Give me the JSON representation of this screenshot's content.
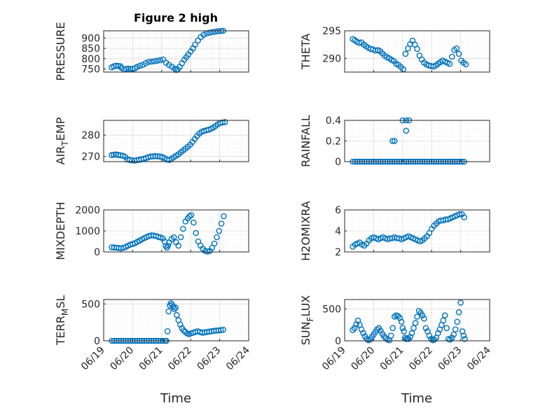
{
  "figure": {
    "title": "Figure 2 high"
  },
  "colors": {
    "marker": "#0072BD",
    "axis": "#262626",
    "grid": "#dcdcdc"
  },
  "x_tick_labels": [
    "06/19",
    "06/20",
    "06/21",
    "06/22",
    "06/23",
    "06/24"
  ],
  "x_label": "Time",
  "chart_data": [
    {
      "type": "scatter",
      "ylabel": "PRESSURE",
      "ylabel_parts": [
        "PRESSURE"
      ],
      "title": "Figure 2 high",
      "xlim": [
        0,
        5
      ],
      "ylim": [
        735,
        935
      ],
      "yticks": [
        750,
        800,
        850,
        900
      ],
      "x_tick_labels_visible": false,
      "series": [
        {
          "x": [
            0.28,
            0.35,
            0.42,
            0.5,
            0.58,
            0.62,
            0.7,
            0.78,
            0.85,
            0.92,
            1.0,
            1.08,
            1.15,
            1.25,
            1.35,
            1.45,
            1.55,
            1.65,
            1.75,
            1.85,
            1.95,
            2.05,
            2.15,
            2.25,
            2.35,
            2.45,
            2.5,
            2.55,
            2.62,
            2.7,
            2.78,
            2.85,
            2.92,
            3.0,
            3.08,
            3.15,
            3.25,
            3.35,
            3.45,
            3.55,
            3.65,
            3.75,
            3.85,
            3.95,
            4.05,
            4.12
          ],
          "y": [
            758,
            763,
            766,
            765,
            763,
            755,
            748,
            750,
            752,
            750,
            751,
            753,
            760,
            766,
            770,
            778,
            784,
            786,
            788,
            790,
            793,
            796,
            780,
            770,
            761,
            752,
            745,
            748,
            760,
            778,
            795,
            808,
            820,
            835,
            850,
            868,
            888,
            905,
            916,
            922,
            926,
            929,
            931,
            933,
            934,
            935
          ]
        }
      ]
    },
    {
      "type": "scatter",
      "ylabel": "THETA",
      "ylabel_parts": [
        "THETA"
      ],
      "xlim": [
        0,
        5
      ],
      "ylim": [
        287.5,
        295
      ],
      "yticks": [
        290,
        295
      ],
      "x_tick_labels_visible": false,
      "series": [
        {
          "x": [
            0.28,
            0.35,
            0.42,
            0.5,
            0.58,
            0.66,
            0.74,
            0.82,
            0.9,
            0.98,
            1.06,
            1.14,
            1.22,
            1.3,
            1.38,
            1.46,
            1.54,
            1.62,
            1.7,
            1.78,
            1.86,
            1.94,
            2.02,
            2.1,
            2.18,
            2.26,
            2.34,
            2.42,
            2.5,
            2.58,
            2.66,
            2.74,
            2.82,
            2.9,
            2.98,
            3.06,
            3.14,
            3.22,
            3.3,
            3.38,
            3.46,
            3.54,
            3.62,
            3.7,
            3.78,
            3.86,
            3.94,
            4.02,
            4.1,
            4.18
          ],
          "y": [
            293.5,
            293.3,
            293.0,
            292.8,
            292.9,
            292.5,
            292.2,
            291.9,
            291.7,
            291.6,
            291.4,
            291.5,
            291.3,
            290.9,
            290.5,
            290.2,
            290.0,
            289.7,
            289.5,
            289.0,
            288.8,
            288.4,
            288.0,
            290.8,
            291.8,
            292.6,
            293.2,
            292.5,
            291.7,
            290.5,
            289.8,
            289.2,
            288.9,
            288.7,
            288.6,
            288.5,
            288.7,
            289.0,
            289.3,
            289.6,
            289.4,
            289.2,
            289.0,
            290.3,
            291.5,
            291.8,
            290.8,
            289.6,
            289.2,
            288.9
          ]
        }
      ]
    },
    {
      "type": "scatter",
      "ylabel": "AIR_T EMP",
      "ylabel_parts": [
        "AIR",
        "T",
        "EMP"
      ],
      "xlim": [
        0,
        5
      ],
      "ylim": [
        267.5,
        287
      ],
      "yticks": [
        270,
        280
      ],
      "x_tick_labels_visible": false,
      "series": [
        {
          "x": [
            0.28,
            0.35,
            0.42,
            0.5,
            0.58,
            0.66,
            0.74,
            0.82,
            0.9,
            0.98,
            1.06,
            1.14,
            1.22,
            1.3,
            1.38,
            1.46,
            1.54,
            1.62,
            1.7,
            1.78,
            1.86,
            1.94,
            2.02,
            2.1,
            2.18,
            2.26,
            2.34,
            2.42,
            2.5,
            2.58,
            2.66,
            2.74,
            2.82,
            2.9,
            2.98,
            3.06,
            3.14,
            3.22,
            3.3,
            3.38,
            3.46,
            3.54,
            3.62,
            3.7,
            3.78,
            3.86,
            3.94,
            4.02,
            4.1,
            4.18
          ],
          "y": [
            270.6,
            270.8,
            270.9,
            270.7,
            270.5,
            270.3,
            269.8,
            268.6,
            268.3,
            268.1,
            268.0,
            268.2,
            268.4,
            268.6,
            268.9,
            269.2,
            269.6,
            269.9,
            270.0,
            270.1,
            270.0,
            269.9,
            269.7,
            269.2,
            268.5,
            268.3,
            268.9,
            269.6,
            270.3,
            271.0,
            271.9,
            272.8,
            273.6,
            274.5,
            275.5,
            276.8,
            278.2,
            279.6,
            280.8,
            281.6,
            282.0,
            282.3,
            282.6,
            283.0,
            283.6,
            284.4,
            285.2,
            285.8,
            286.0,
            286.2
          ]
        }
      ]
    },
    {
      "type": "scatter",
      "ylabel": "RAINFALL",
      "ylabel_parts": [
        "RAINFALL"
      ],
      "xlim": [
        0,
        5
      ],
      "ylim": [
        0,
        0.4
      ],
      "yticks": [
        0,
        0.2,
        0.4
      ],
      "x_tick_labels_visible": false,
      "series": [
        {
          "x": [
            0.28,
            0.36,
            0.44,
            0.52,
            0.6,
            0.68,
            0.76,
            0.84,
            0.92,
            1.0,
            1.08,
            1.16,
            1.24,
            1.32,
            1.4,
            1.48,
            1.56,
            1.64,
            1.72,
            1.8,
            1.88,
            1.96,
            2.04,
            2.12,
            2.2,
            2.28,
            2.36,
            2.44,
            2.52,
            2.6,
            2.68,
            2.76,
            2.84,
            2.92,
            3.0,
            3.08,
            3.16,
            3.24,
            3.32,
            3.4,
            3.48,
            3.56,
            3.64,
            3.72,
            3.8,
            3.88,
            3.96,
            4.04,
            4.12,
            1.65,
            1.72,
            2.0,
            2.12,
            2.22,
            2.12
          ],
          "y": [
            0,
            0,
            0,
            0,
            0,
            0,
            0,
            0,
            0,
            0,
            0,
            0,
            0,
            0,
            0,
            0,
            0,
            0,
            0,
            0,
            0,
            0,
            0,
            0,
            0,
            0,
            0,
            0,
            0,
            0,
            0,
            0,
            0,
            0,
            0,
            0,
            0,
            0,
            0,
            0,
            0,
            0,
            0,
            0,
            0,
            0,
            0,
            0,
            0,
            0.2,
            0.2,
            0.4,
            0.4,
            0.4,
            0.3
          ]
        }
      ]
    },
    {
      "type": "scatter",
      "ylabel": "MIXDEPTH",
      "ylabel_parts": [
        "MIXDEPTH"
      ],
      "xlim": [
        0,
        5
      ],
      "ylim": [
        0,
        2000
      ],
      "yticks": [
        0,
        1000,
        2000
      ],
      "x_tick_labels_visible": false,
      "series": [
        {
          "x": [
            0.28,
            0.36,
            0.44,
            0.52,
            0.6,
            0.68,
            0.76,
            0.84,
            0.92,
            1.0,
            1.08,
            1.16,
            1.24,
            1.32,
            1.4,
            1.48,
            1.56,
            1.64,
            1.72,
            1.8,
            1.88,
            1.96,
            2.04,
            2.1,
            2.14,
            2.18,
            2.22,
            2.26,
            2.34,
            2.42,
            2.5,
            2.58,
            2.66,
            2.74,
            2.82,
            2.9,
            2.96,
            3.02,
            3.1,
            3.18,
            3.26,
            3.34,
            3.42,
            3.5,
            3.58,
            3.66,
            3.74,
            3.82,
            3.9,
            3.98,
            4.06,
            4.14
          ],
          "y": [
            220,
            210,
            200,
            190,
            170,
            200,
            240,
            300,
            350,
            380,
            420,
            480,
            540,
            600,
            660,
            710,
            760,
            790,
            780,
            760,
            720,
            690,
            640,
            500,
            280,
            200,
            300,
            450,
            620,
            700,
            460,
            300,
            700,
            1100,
            1450,
            1600,
            1700,
            1750,
            1400,
            900,
            500,
            300,
            150,
            50,
            20,
            50,
            200,
            400,
            700,
            1000,
            1350,
            1700
          ]
        }
      ]
    },
    {
      "type": "scatter",
      "ylabel": "H2OMIXRA",
      "ylabel_parts": [
        "H2OMIXRA"
      ],
      "xlim": [
        0,
        5
      ],
      "ylim": [
        2,
        6
      ],
      "yticks": [
        2,
        4,
        6
      ],
      "x_tick_labels_visible": false,
      "series": [
        {
          "x": [
            0.28,
            0.36,
            0.44,
            0.52,
            0.6,
            0.68,
            0.76,
            0.84,
            0.92,
            1.0,
            1.08,
            1.16,
            1.24,
            1.32,
            1.4,
            1.48,
            1.56,
            1.64,
            1.72,
            1.8,
            1.88,
            1.96,
            2.04,
            2.12,
            2.2,
            2.28,
            2.36,
            2.44,
            2.52,
            2.6,
            2.68,
            2.76,
            2.84,
            2.92,
            3.0,
            3.08,
            3.16,
            3.24,
            3.32,
            3.4,
            3.48,
            3.56,
            3.64,
            3.72,
            3.8,
            3.88,
            3.96,
            4.04,
            4.12
          ],
          "y": [
            2.5,
            2.7,
            2.8,
            2.9,
            2.7,
            2.6,
            2.8,
            3.1,
            3.3,
            3.4,
            3.3,
            3.2,
            3.3,
            3.4,
            3.3,
            3.2,
            3.3,
            3.3,
            3.4,
            3.3,
            3.3,
            3.2,
            3.3,
            3.4,
            3.5,
            3.4,
            3.3,
            3.2,
            3.1,
            3.0,
            3.1,
            3.3,
            3.5,
            3.8,
            4.2,
            4.5,
            4.7,
            4.9,
            5.0,
            5.0,
            5.1,
            5.1,
            5.2,
            5.3,
            5.4,
            5.5,
            5.6,
            5.6,
            5.3
          ]
        }
      ]
    },
    {
      "type": "scatter",
      "ylabel": "TERR_M SL",
      "ylabel_parts": [
        "TERR",
        "M",
        "SL"
      ],
      "xlim": [
        0,
        5
      ],
      "ylim": [
        0,
        560
      ],
      "yticks": [
        0,
        500
      ],
      "x_tick_labels_visible": true,
      "series": [
        {
          "x": [
            0.28,
            0.36,
            0.44,
            0.52,
            0.6,
            0.68,
            0.76,
            0.84,
            0.92,
            1.0,
            1.08,
            1.16,
            1.24,
            1.32,
            1.4,
            1.48,
            1.56,
            1.64,
            1.72,
            1.8,
            1.88,
            1.96,
            2.04,
            2.12,
            2.16,
            2.2,
            2.24,
            2.28,
            2.32,
            2.36,
            2.4,
            2.44,
            2.48,
            2.52,
            2.58,
            2.64,
            2.7,
            2.76,
            2.82,
            2.88,
            2.94,
            3.0,
            3.08,
            3.16,
            3.24,
            3.32,
            3.4,
            3.48,
            3.56,
            3.64,
            3.72,
            3.8,
            3.88,
            3.96,
            4.04,
            4.12
          ],
          "y": [
            0,
            0,
            0,
            0,
            0,
            0,
            0,
            0,
            0,
            0,
            0,
            0,
            0,
            0,
            0,
            0,
            0,
            0,
            0,
            0,
            0,
            0,
            0,
            0,
            0,
            130,
            400,
            480,
            510,
            490,
            460,
            430,
            450,
            350,
            280,
            220,
            170,
            140,
            120,
            100,
            90,
            100,
            110,
            120,
            130,
            120,
            110,
            115,
            120,
            125,
            130,
            135,
            140,
            140,
            145,
            150
          ]
        }
      ]
    },
    {
      "type": "scatter",
      "ylabel": "SUN_F LUX",
      "ylabel_parts": [
        "SUN",
        "F",
        "LUX"
      ],
      "xlim": [
        0,
        5
      ],
      "ylim": [
        0,
        650
      ],
      "yticks": [
        0,
        500
      ],
      "x_tick_labels_visible": true,
      "series": [
        {
          "x": [
            0.28,
            0.34,
            0.4,
            0.46,
            0.52,
            0.58,
            0.64,
            0.7,
            0.76,
            0.82,
            0.88,
            0.94,
            1.0,
            1.06,
            1.12,
            1.18,
            1.24,
            1.3,
            1.36,
            1.42,
            1.48,
            1.54,
            1.6,
            1.66,
            1.72,
            1.78,
            1.84,
            1.9,
            1.96,
            2.0,
            2.04,
            2.08,
            2.12,
            2.16,
            2.2,
            2.26,
            2.32,
            2.38,
            2.44,
            2.5,
            2.56,
            2.62,
            2.68,
            2.74,
            2.8,
            2.86,
            2.92,
            2.98,
            3.04,
            3.1,
            3.16,
            3.22,
            3.28,
            3.34,
            3.4,
            3.46,
            3.52,
            3.58,
            3.64,
            3.7,
            3.76,
            3.82,
            3.88,
            3.94,
            4.0,
            4.06,
            4.1,
            4.14
          ],
          "y": [
            170,
            200,
            260,
            320,
            250,
            180,
            120,
            70,
            30,
            10,
            20,
            60,
            100,
            140,
            180,
            200,
            160,
            110,
            70,
            40,
            20,
            10,
            80,
            200,
            380,
            400,
            390,
            360,
            300,
            200,
            150,
            50,
            30,
            40,
            30,
            60,
            120,
            200,
            280,
            380,
            470,
            440,
            400,
            350,
            200,
            150,
            80,
            30,
            10,
            20,
            50,
            120,
            180,
            250,
            320,
            400,
            200,
            30,
            20,
            50,
            100,
            180,
            300,
            450,
            600,
            150,
            80,
            30
          ]
        }
      ]
    }
  ]
}
